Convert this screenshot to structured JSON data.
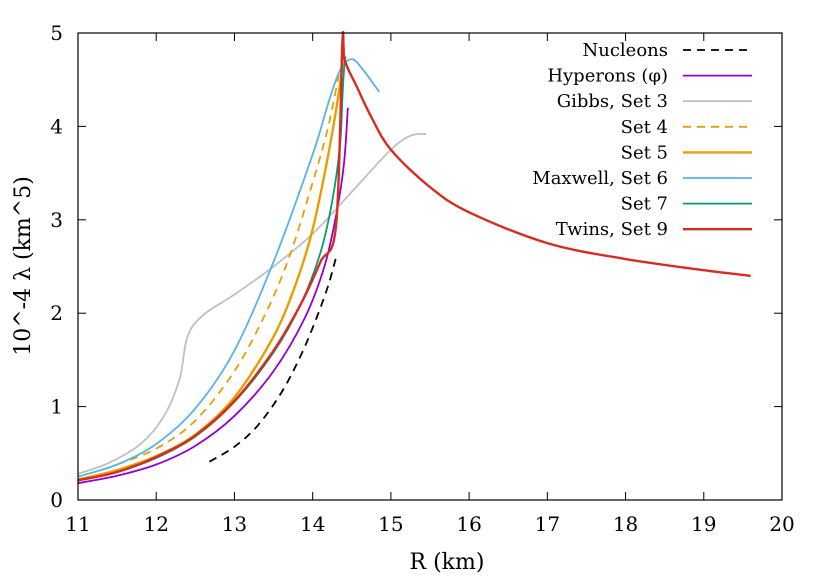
{
  "chart_data": {
    "type": "line",
    "title": "",
    "xlabel": "R (km)",
    "ylabel": "10^-4 λ (km^5)",
    "xlim": [
      11,
      20
    ],
    "ylim": [
      0,
      5
    ],
    "xticks": [
      "11",
      "12",
      "13",
      "14",
      "15",
      "16",
      "17",
      "18",
      "19",
      "20"
    ],
    "yticks": [
      "0",
      "1",
      "2",
      "3",
      "4",
      "5"
    ],
    "legend_position": "top-right",
    "series": [
      {
        "name": "Nucleons",
        "color": "#000000",
        "dash": "dashed",
        "x": [
          12.68,
          13.0,
          13.3,
          13.6,
          13.85,
          14.05,
          14.2,
          14.3
        ],
        "y": [
          0.41,
          0.57,
          0.8,
          1.15,
          1.55,
          1.95,
          2.3,
          2.6
        ]
      },
      {
        "name": "Hyperons (φ)",
        "color": "#9400d3",
        "dash": "solid",
        "x": [
          11.0,
          11.5,
          12.0,
          12.5,
          13.0,
          13.5,
          13.9,
          14.15,
          14.3,
          14.4,
          14.45
        ],
        "y": [
          0.18,
          0.26,
          0.38,
          0.58,
          0.9,
          1.38,
          1.95,
          2.5,
          3.05,
          3.6,
          4.2
        ]
      },
      {
        "name": "Gibbs, Set 3",
        "color": "#c0c0c0",
        "dash": "solid",
        "x": [
          11.0,
          11.4,
          11.8,
          12.1,
          12.3,
          12.4,
          12.6,
          13.0,
          13.5,
          14.0,
          14.5,
          15.0,
          15.25,
          15.45
        ],
        "y": [
          0.28,
          0.4,
          0.6,
          0.9,
          1.3,
          1.75,
          1.98,
          2.2,
          2.5,
          2.85,
          3.3,
          3.75,
          3.9,
          3.92
        ]
      },
      {
        "name": "Set 4",
        "color": "#e69f00",
        "dash": "dashed",
        "x": [
          11.5,
          12.0,
          12.5,
          13.0,
          13.4,
          13.7,
          14.0,
          14.2,
          14.35
        ],
        "y": [
          0.38,
          0.55,
          0.85,
          1.38,
          2.0,
          2.6,
          3.4,
          4.0,
          4.62
        ]
      },
      {
        "name": "Set 5",
        "color": "#e69f00",
        "dash": "solid",
        "x": [
          11.0,
          11.5,
          12.0,
          12.5,
          13.0,
          13.5,
          13.8,
          14.0,
          14.2,
          14.35,
          14.4
        ],
        "y": [
          0.22,
          0.32,
          0.47,
          0.7,
          1.1,
          1.75,
          2.35,
          2.9,
          3.7,
          4.45,
          4.85
        ]
      },
      {
        "name": "Maxwell, Set 6",
        "color": "#56b4e9",
        "dash": "solid",
        "x": [
          11.0,
          11.5,
          12.0,
          12.5,
          13.0,
          13.5,
          14.0,
          14.2,
          14.35,
          14.5,
          14.65,
          14.85
        ],
        "y": [
          0.25,
          0.38,
          0.6,
          0.98,
          1.6,
          2.55,
          3.7,
          4.25,
          4.6,
          4.72,
          4.6,
          4.37
        ]
      },
      {
        "name": "Set 7",
        "color": "#009e73",
        "dash": "solid",
        "x": [
          11.0,
          11.5,
          12.0,
          12.5,
          13.0,
          13.5,
          13.85,
          14.1,
          14.25,
          14.35,
          14.38,
          14.4,
          14.42
        ],
        "y": [
          0.21,
          0.3,
          0.45,
          0.68,
          1.05,
          1.58,
          2.1,
          2.65,
          3.2,
          3.8,
          4.3,
          4.6,
          4.75
        ]
      },
      {
        "name": "Twins, Set 9",
        "color": "#d62d20",
        "dash": "solid",
        "x": [
          11.0,
          11.5,
          12.0,
          12.5,
          13.0,
          13.5,
          13.85,
          14.1,
          14.3,
          14.38,
          14.4,
          14.45,
          14.55,
          14.75,
          15.0,
          15.5,
          16.0,
          17.0,
          18.0,
          19.0,
          19.6
        ],
        "y": [
          0.21,
          0.3,
          0.46,
          0.69,
          1.06,
          1.6,
          2.1,
          2.55,
          2.95,
          4.9,
          4.75,
          4.62,
          4.45,
          4.1,
          3.75,
          3.35,
          3.08,
          2.75,
          2.58,
          2.46,
          2.4
        ]
      }
    ]
  }
}
